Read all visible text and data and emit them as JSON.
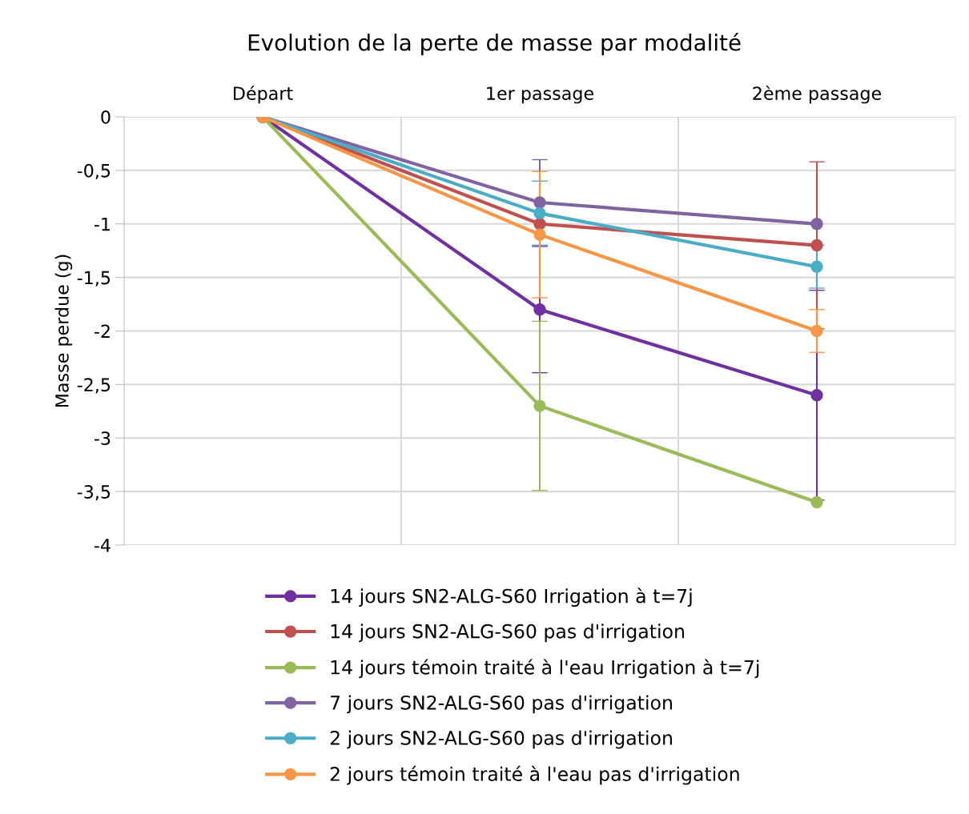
{
  "chart_data": {
    "type": "line",
    "title": "Evolution de la perte de masse par modalité",
    "ylabel": "Masse perdue (g)",
    "categories": [
      "Départ",
      "1er passage",
      "2ème passage"
    ],
    "series": [
      {
        "name": "14 jours SN2-ALG-S60 Irrigation à t=7j",
        "color": "#7030a0",
        "values": [
          0,
          -1.8,
          -2.6
        ],
        "errors": [
          null,
          0.59,
          0.98
        ]
      },
      {
        "name": "14 jours SN2-ALG-S60 pas d'irrigation",
        "color": "#c0504d",
        "values": [
          0,
          -1.0,
          -1.2
        ],
        "errors": [
          null,
          null,
          0.78
        ]
      },
      {
        "name": "14 jours témoin traité à l'eau Irrigation à t=7j",
        "color": "#9bbb59",
        "values": [
          0,
          -2.7,
          -3.6
        ],
        "errors": [
          null,
          0.79,
          null
        ]
      },
      {
        "name": "7 jours SN2-ALG-S60 pas d'irrigation",
        "color": "#8064a2",
        "values": [
          0,
          -0.8,
          -1.0
        ],
        "errors": [
          null,
          0.4,
          null
        ]
      },
      {
        "name": "2 jours SN2-ALG-S60 pas d'irrigation",
        "color": "#4bacc6",
        "values": [
          0,
          -0.9,
          -1.4
        ],
        "errors": [
          null,
          0.3,
          0.2
        ]
      },
      {
        "name": "2 jours témoin traité à l'eau pas d'irrigation",
        "color": "#f79646",
        "values": [
          0,
          -1.1,
          -2.0
        ],
        "errors": [
          null,
          0.59,
          0.2
        ]
      }
    ],
    "ylim": [
      -4,
      0
    ],
    "yticks": [
      0,
      {
        "value": -0.5,
        "label": "-0,5"
      },
      -1,
      {
        "value": -1.5,
        "label": "-1,5"
      },
      -2,
      {
        "value": -2.5,
        "label": "-2,5"
      },
      -3,
      {
        "value": -3.5,
        "label": "-3,5"
      },
      -4
    ],
    "grid": true,
    "legend": "bottom",
    "marker": "circle",
    "line_style": "solid"
  }
}
